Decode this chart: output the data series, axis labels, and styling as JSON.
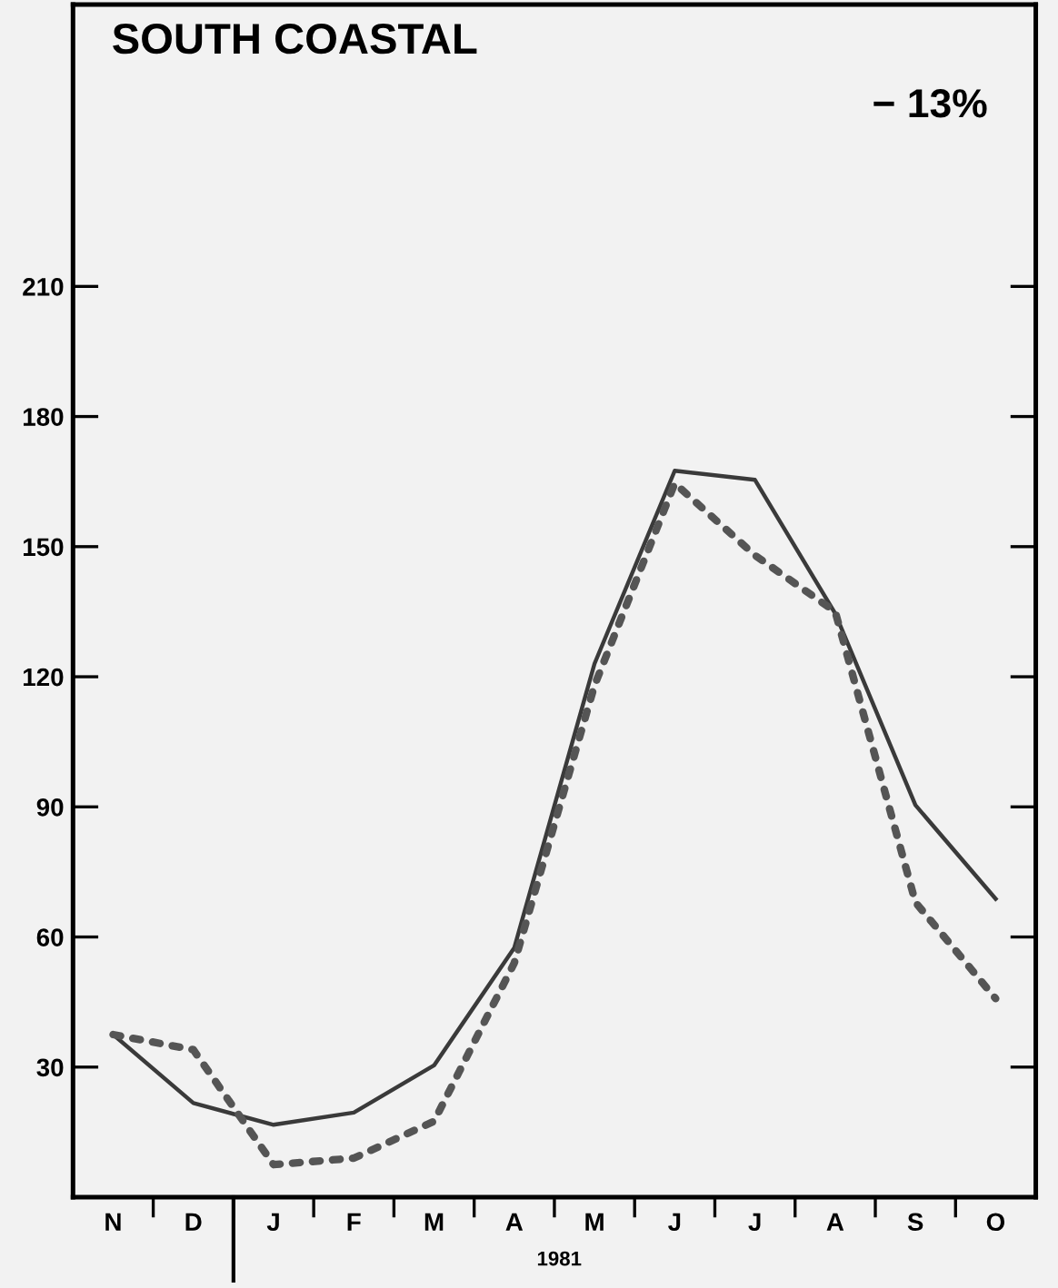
{
  "chart_data": {
    "type": "line",
    "title": "SOUTH COASTAL",
    "categories": [
      "N",
      "D",
      "J",
      "F",
      "M",
      "A",
      "M",
      "J",
      "J",
      "A",
      "S",
      "O"
    ],
    "series": [
      {
        "color": "#3a3a3a",
        "line_style": "solid",
        "values": [
          37.5,
          21.7,
          16.7,
          19.5,
          30.4,
          57.5,
          123,
          167.5,
          165.4,
          134.6,
          90.4,
          68.8
        ]
      },
      {
        "color": "#555555",
        "line_style": "dotted",
        "values": [
          37.5,
          34,
          7.5,
          9,
          17.5,
          54,
          118,
          164.6,
          148,
          135,
          68,
          45.8
        ]
      }
    ],
    "ylim": [
      0,
      275
    ],
    "yticks": [
      30,
      60,
      90,
      120,
      150,
      180,
      210
    ],
    "grid": false,
    "legend": false,
    "marker": "none",
    "annotations": [
      "− 13%",
      "1981"
    ]
  }
}
